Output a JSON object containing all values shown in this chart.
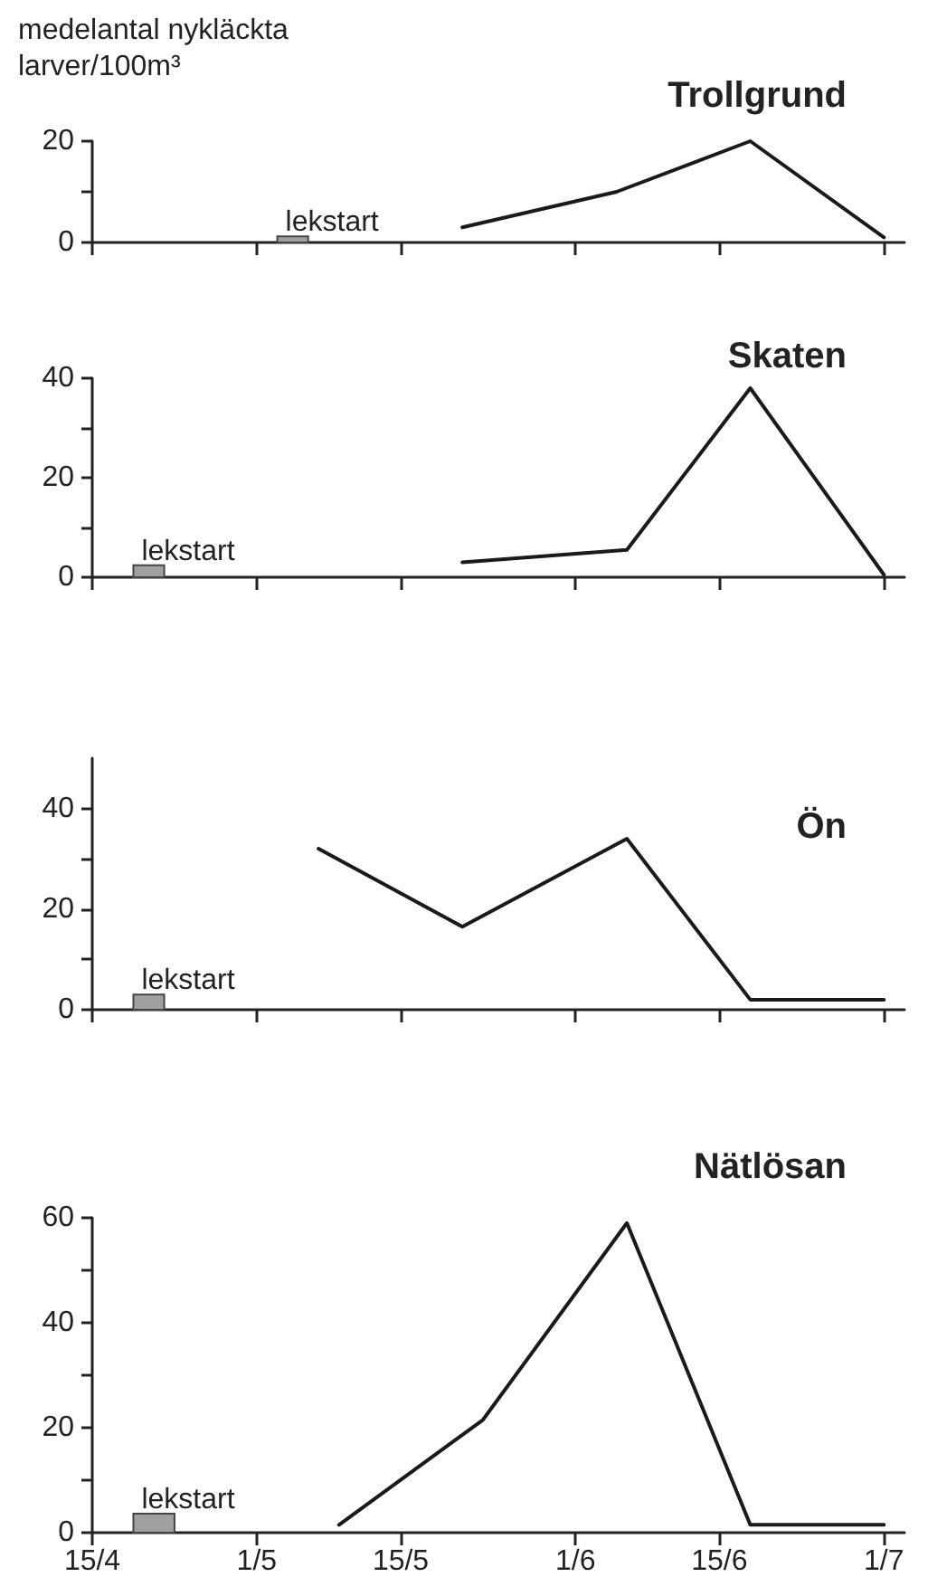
{
  "chart_data": [
    {
      "type": "line",
      "title": "Trollgrund",
      "ylabel": "medelantal nykläckta larver/100m³",
      "x": [
        "--05-21",
        "--06-05",
        "--06-18",
        "--07-01"
      ],
      "series": [
        {
          "color": "#1a1a1a",
          "values": [
            3,
            10,
            20,
            1
          ]
        }
      ],
      "xlim": [
        "--04-15",
        "--07-03"
      ],
      "xticks": [
        {
          "value": "--04-15",
          "label": "15/4"
        },
        {
          "value": "--05-01",
          "label": "1/5"
        },
        {
          "value": "--05-15",
          "label": "15/5"
        },
        {
          "value": "--06-01",
          "label": "1/6"
        },
        {
          "value": "--06-15",
          "label": "15/6"
        },
        {
          "value": "--07-01",
          "label": "1/7"
        }
      ],
      "ylim": [
        0,
        20
      ],
      "yticks": [
        0,
        {
          "value": 10,
          "label": null
        },
        20
      ],
      "tick_labels": "y",
      "bands": [
        {
          "axis": "x",
          "from": "--05-03",
          "to": "--05-06",
          "label": "lekstart",
          "color": "#a0a0a0"
        }
      ],
      "marker": "none",
      "line_style": "solid",
      "grid": false
    },
    {
      "type": "line",
      "title": "Skaten",
      "x": [
        "--05-21",
        "--06-06",
        "--06-18",
        "--07-01"
      ],
      "series": [
        {
          "color": "#1a1a1a",
          "values": [
            3,
            5.5,
            38,
            0.5
          ]
        }
      ],
      "xlim": [
        "--04-15",
        "--07-03"
      ],
      "xticks": [
        {
          "value": "--04-15",
          "label": "15/4"
        },
        {
          "value": "--05-01",
          "label": "1/5"
        },
        {
          "value": "--05-15",
          "label": "15/5"
        },
        {
          "value": "--06-01",
          "label": "1/6"
        },
        {
          "value": "--06-15",
          "label": "15/6"
        },
        {
          "value": "--07-01",
          "label": "1/7"
        }
      ],
      "ylim": [
        0,
        40
      ],
      "yticks": [
        0,
        {
          "value": 10,
          "label": null
        },
        20,
        {
          "value": 30,
          "label": null
        },
        40
      ],
      "tick_labels": "y",
      "bands": [
        {
          "axis": "x",
          "from": "--04-19",
          "to": "--04-22",
          "label": "lekstart",
          "color": "#a0a0a0"
        }
      ],
      "marker": "none",
      "line_style": "solid",
      "grid": false
    },
    {
      "type": "line",
      "title": "Ön",
      "x": [
        "--05-07",
        "--05-21",
        "--06-06",
        "--06-18",
        "--07-01"
      ],
      "series": [
        {
          "color": "#1a1a1a",
          "values": [
            32,
            16.5,
            34,
            2,
            2
          ]
        }
      ],
      "xlim": [
        "--04-15",
        "--07-03"
      ],
      "xticks": [
        {
          "value": "--04-15",
          "label": "15/4"
        },
        {
          "value": "--05-01",
          "label": "1/5"
        },
        {
          "value": "--05-15",
          "label": "15/5"
        },
        {
          "value": "--06-01",
          "label": "1/6"
        },
        {
          "value": "--06-15",
          "label": "15/6"
        },
        {
          "value": "--07-01",
          "label": "1/7"
        }
      ],
      "ylim": [
        0,
        50
      ],
      "yticks": [
        0,
        {
          "value": 10,
          "label": null
        },
        20,
        {
          "value": 30,
          "label": null
        },
        40
      ],
      "tick_labels": "y",
      "bands": [
        {
          "axis": "x",
          "from": "--04-19",
          "to": "--04-22",
          "label": "lekstart",
          "color": "#a0a0a0"
        }
      ],
      "marker": "none",
      "line_style": "solid",
      "grid": false
    },
    {
      "type": "line",
      "title": "Nätlösan",
      "x": [
        "--05-09",
        "--05-23",
        "--06-06",
        "--06-18",
        "--07-01"
      ],
      "series": [
        {
          "color": "#1a1a1a",
          "values": [
            1.5,
            21.5,
            59,
            1.5,
            1.5
          ]
        }
      ],
      "xlim": [
        "--04-15",
        "--07-03"
      ],
      "xticks": [
        {
          "value": "--04-15",
          "label": "15/4"
        },
        {
          "value": "--05-01",
          "label": "1/5"
        },
        {
          "value": "--05-15",
          "label": "15/5"
        },
        {
          "value": "--06-01",
          "label": "1/6"
        },
        {
          "value": "--06-15",
          "label": "15/6"
        },
        {
          "value": "--07-01",
          "label": "1/7"
        }
      ],
      "ylim": [
        0,
        60
      ],
      "yticks": [
        0,
        {
          "value": 10,
          "label": null
        },
        20,
        {
          "value": 30,
          "label": null
        },
        40,
        {
          "value": 50,
          "label": null
        },
        60
      ],
      "bands": [
        {
          "axis": "x",
          "from": "--04-19",
          "to": "--04-23",
          "label": "lekstart",
          "color": "#a0a0a0"
        }
      ],
      "marker": "none",
      "line_style": "solid",
      "grid": false
    }
  ]
}
